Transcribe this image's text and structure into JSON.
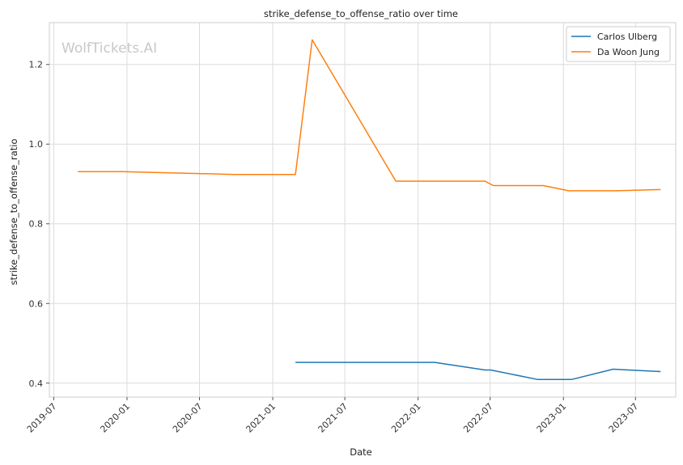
{
  "chart_data": {
    "type": "line",
    "title": "strike_defense_to_offense_ratio over time",
    "xlabel": "Date",
    "ylabel": "strike_defense_to_offense_ratio",
    "watermark": "WolfTickets.AI",
    "x_is_date": true,
    "xlim": [
      "2019-06-20",
      "2023-10-10"
    ],
    "ylim": [
      0.365,
      1.305
    ],
    "xticks": [
      "2019-07-01",
      "2020-01-01",
      "2020-07-01",
      "2021-01-01",
      "2021-07-01",
      "2022-01-01",
      "2022-07-01",
      "2023-01-01",
      "2023-07-01"
    ],
    "xtick_labels": [
      "2019-07",
      "2020-01",
      "2020-07",
      "2021-01",
      "2021-07",
      "2022-01",
      "2022-07",
      "2023-01",
      "2023-07"
    ],
    "yticks": [
      0.4,
      0.6,
      0.8,
      1.0,
      1.2
    ],
    "ytick_labels": [
      "0.4",
      "0.6",
      "0.8",
      "1.0",
      "1.2"
    ],
    "grid": true,
    "legend_position": "top-right",
    "series": [
      {
        "name": "Carlos Ulberg",
        "color": "#1f77b4",
        "x": [
          "2021-02-27",
          "2022-02-12",
          "2022-06-18",
          "2022-07-02",
          "2022-10-29",
          "2023-01-21",
          "2023-05-06",
          "2023-09-02"
        ],
        "y": [
          0.452,
          0.452,
          0.433,
          0.433,
          0.409,
          0.409,
          0.435,
          0.429
        ]
      },
      {
        "name": "Da Woon Jung",
        "color": "#ff7f0e",
        "x": [
          "2019-08-31",
          "2019-12-21",
          "2020-09-26",
          "2021-02-27",
          "2021-04-10",
          "2021-11-06",
          "2022-06-18",
          "2022-07-09",
          "2022-11-12",
          "2023-01-14",
          "2023-05-13",
          "2023-09-02"
        ],
        "y": [
          0.931,
          0.931,
          0.924,
          0.924,
          1.262,
          0.907,
          0.907,
          0.896,
          0.896,
          0.883,
          0.883,
          0.886
        ]
      }
    ]
  }
}
